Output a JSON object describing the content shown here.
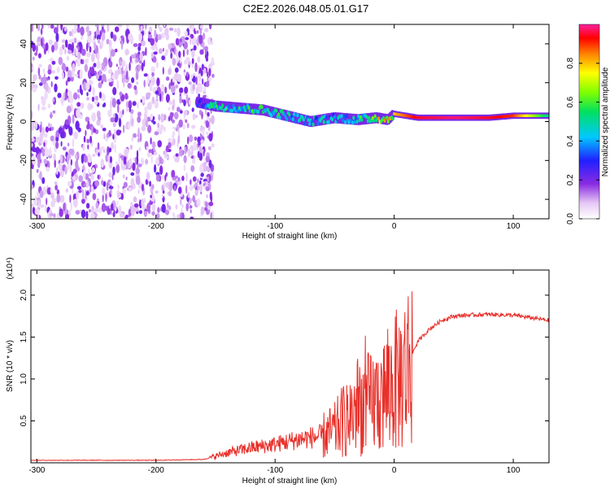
{
  "figure": {
    "title": "C2E2.2026.048.05.01.G17"
  },
  "colors": {
    "signal_line": "#e8302a",
    "axis": "#000000",
    "background": "#ffffff"
  },
  "chart_data": [
    {
      "type": "heatmap",
      "name": "spectrogram",
      "xlabel": "Height of straight line (km)",
      "ylabel": "Frequency (Hz)",
      "xlim": [
        -305,
        130
      ],
      "ylim": [
        -50,
        50
      ],
      "x_ticks": [
        -300,
        -200,
        -100,
        0,
        100
      ],
      "x_tick_labels": [
        "-300",
        "-200",
        "-100",
        "0",
        "100"
      ],
      "y_ticks": [
        -40,
        -20,
        0,
        20,
        40
      ],
      "y_tick_labels": [
        "-40",
        "-20",
        "0",
        "20",
        "40"
      ],
      "noise_region_x": [
        -305,
        -152
      ],
      "ridge": {
        "x": [
          -165,
          -150,
          -130,
          -110,
          -90,
          -70,
          -50,
          -30,
          -15,
          -5,
          0,
          20,
          50,
          80,
          100,
          130
        ],
        "y": [
          10,
          8,
          7,
          6,
          3,
          0,
          2,
          1,
          2,
          1,
          4,
          2,
          2,
          2,
          3,
          3
        ],
        "amplitude": [
          0.3,
          0.6,
          0.55,
          0.6,
          0.55,
          0.5,
          0.45,
          0.55,
          0.75,
          0.85,
          0.8,
          0.95,
          0.98,
          0.95,
          0.9,
          0.5
        ]
      },
      "colorbar": {
        "label": "Normalized spectral amplitude",
        "range": [
          0,
          1
        ],
        "ticks": [
          0.0,
          0.2,
          0.4,
          0.6,
          0.8
        ],
        "tick_labels": [
          "0.0",
          "0.2",
          "0.4",
          "0.6",
          "0.8"
        ]
      }
    },
    {
      "type": "line",
      "name": "snr",
      "xlabel": "Height of straight line (km)",
      "ylabel": "SNR (10 * v/v)",
      "scale_label": "(x10⁴)",
      "xlim": [
        -305,
        130
      ],
      "ylim": [
        0,
        2.3
      ],
      "x_ticks": [
        -300,
        -200,
        -100,
        0,
        100
      ],
      "x_tick_labels": [
        "-300",
        "-200",
        "-100",
        "0",
        "100"
      ],
      "y_ticks": [
        0.5,
        1.0,
        1.5,
        2.0
      ],
      "y_tick_labels": [
        "0.5",
        "1.0",
        "1.5",
        "2.0"
      ],
      "series": [
        {
          "name": "SNR",
          "x": [
            -305,
            -250,
            -200,
            -160,
            -140,
            -120,
            -100,
            -80,
            -60,
            -50,
            -40,
            -35,
            -30,
            -20,
            -10,
            0,
            5,
            10,
            15,
            20,
            30,
            40,
            50,
            60,
            80,
            100,
            120,
            130
          ],
          "y": [
            0.03,
            0.03,
            0.03,
            0.04,
            0.12,
            0.18,
            0.22,
            0.28,
            0.32,
            0.38,
            0.55,
            0.6,
            0.7,
            0.7,
            0.8,
            0.95,
            1.0,
            1.1,
            1.3,
            1.45,
            1.6,
            1.7,
            1.75,
            1.76,
            1.77,
            1.76,
            1.72,
            1.7
          ]
        }
      ]
    }
  ]
}
